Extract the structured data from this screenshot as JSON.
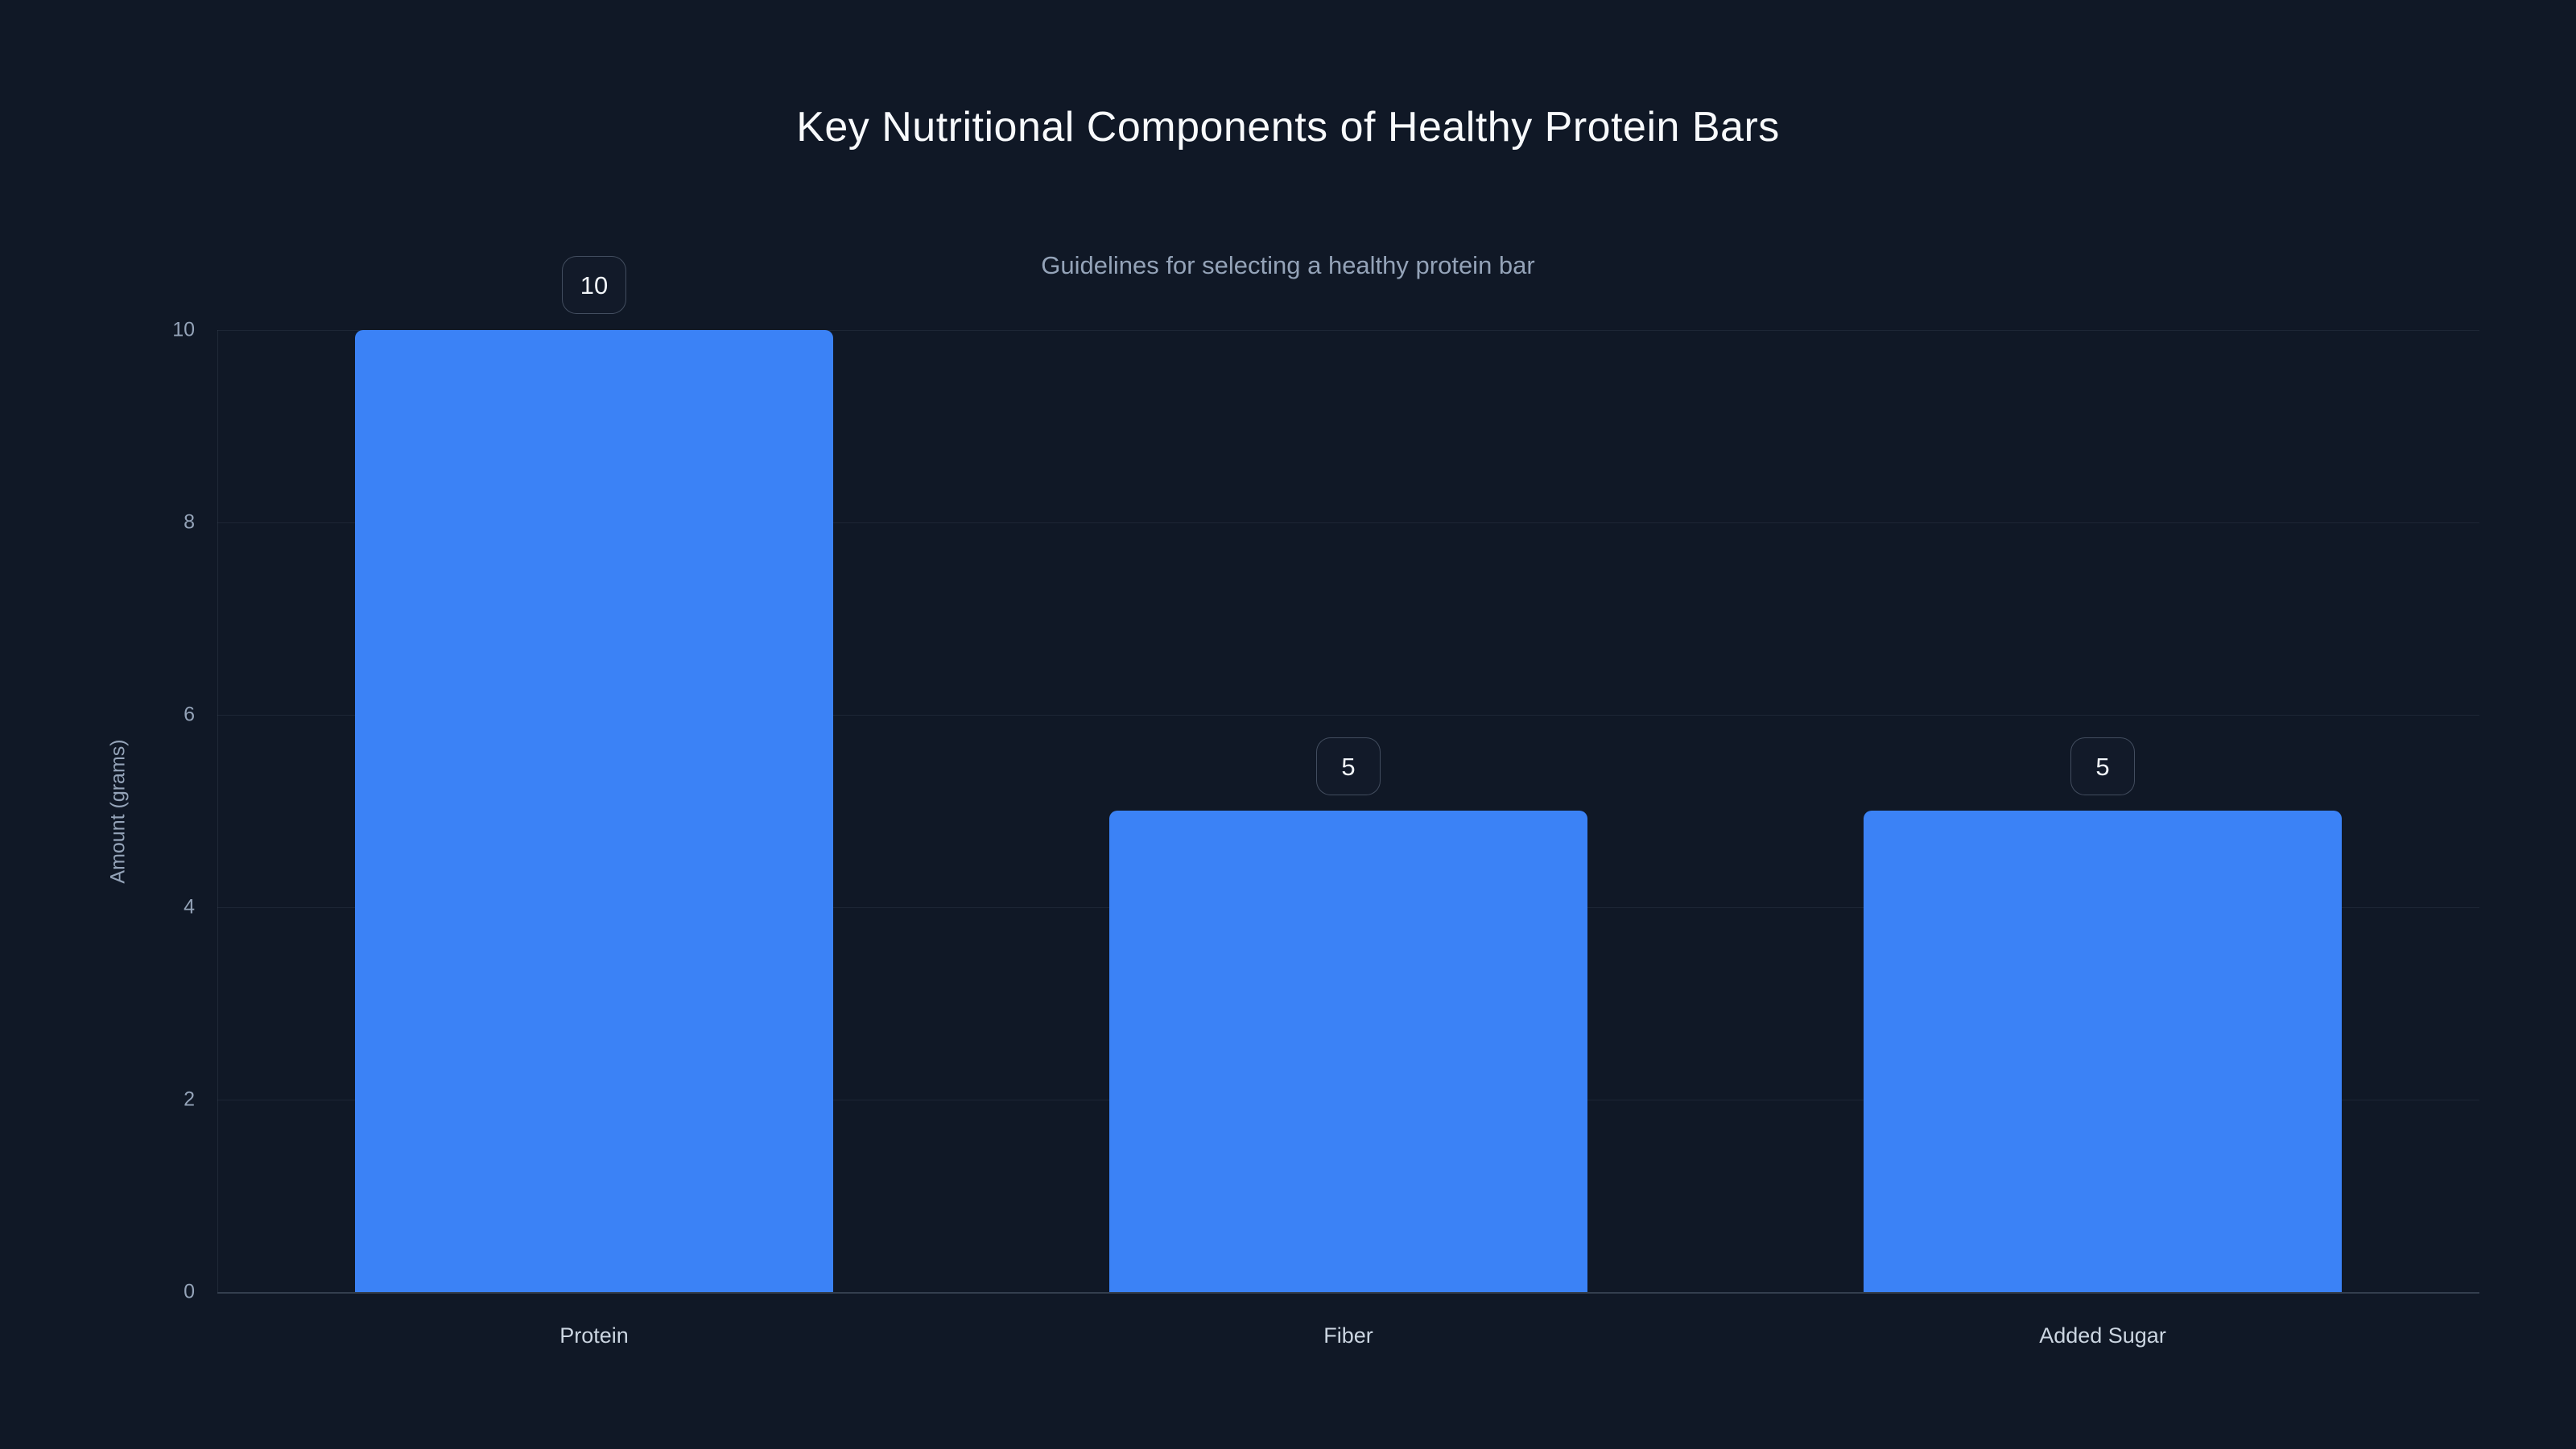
{
  "page": {
    "background": "#101826"
  },
  "chart_data": {
    "type": "bar",
    "title": "Key Nutritional Components of Healthy Protein Bars",
    "subtitle": "Guidelines for selecting a healthy protein bar",
    "categories": [
      "Protein",
      "Fiber",
      "Added Sugar"
    ],
    "values": [
      10,
      5,
      5
    ],
    "value_labels": [
      "10",
      "5",
      "5"
    ],
    "xlabel": "",
    "ylabel": "Amount (grams)",
    "ylim": [
      0,
      10
    ],
    "yticks": [
      0,
      2,
      4,
      6,
      8,
      10
    ],
    "grid": true,
    "legend": false,
    "bar_color": "#3b82f6",
    "background_color": "#101826"
  }
}
